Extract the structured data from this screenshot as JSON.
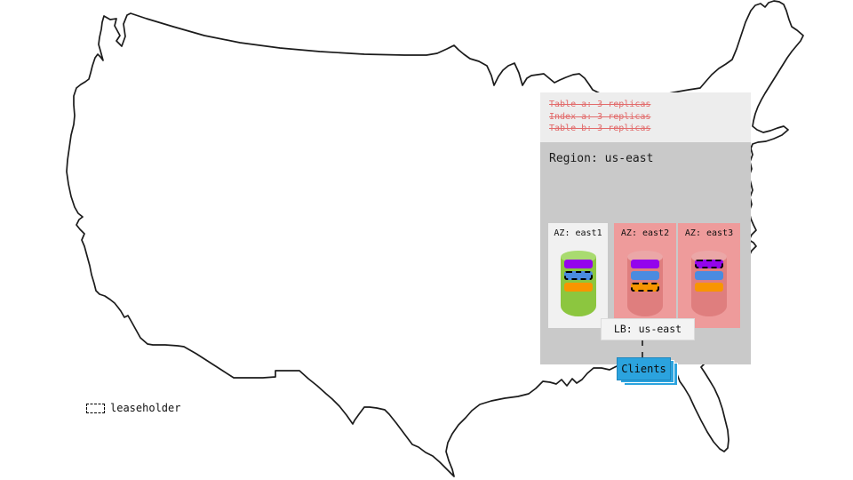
{
  "panel": {
    "annotations": [
      "Table a: 3 replicas",
      "Index a: 3 replicas",
      "Table b: 3 replicas"
    ],
    "region_label": "Region: us-east",
    "azs": [
      {
        "label": "AZ: east1",
        "box": "az_white",
        "cylinder": "green",
        "replicas": [
          {
            "color": "purple",
            "leaseholder": false
          },
          {
            "color": "blue",
            "leaseholder": true
          },
          {
            "color": "orange",
            "leaseholder": false
          }
        ]
      },
      {
        "label": "AZ: east2",
        "box": "az_pink",
        "cylinder": "red",
        "replicas": [
          {
            "color": "purple",
            "leaseholder": false
          },
          {
            "color": "blue",
            "leaseholder": false
          },
          {
            "color": "orange",
            "leaseholder": true
          }
        ]
      },
      {
        "label": "AZ: east3",
        "box": "az_pink",
        "cylinder": "red",
        "replicas": [
          {
            "color": "purple",
            "leaseholder": true
          },
          {
            "color": "blue",
            "leaseholder": false
          },
          {
            "color": "orange",
            "leaseholder": false
          }
        ]
      }
    ],
    "lb_label": "LB: us-east",
    "clients_label": "Clients"
  },
  "legend": {
    "label": "leaseholder"
  },
  "colors": {
    "purple": "#9404EC",
    "blue": "#4A8BE0",
    "orange": "#F89500",
    "green_cyl": "#8CC63F",
    "green_cyl_top": "#A9DB70",
    "red_cyl": "#DF7E7E",
    "red_cyl_top": "#EBA7A7",
    "az_pink": "#EE9B9B",
    "az_white": "#F1F1F1",
    "clients_blue": "#2BA3DE",
    "strikethrough_red": "#E26B6B",
    "panel_light": "#EDEDED",
    "panel_gray": "#C9C9C9",
    "map_stroke": "#1B1B1B"
  }
}
